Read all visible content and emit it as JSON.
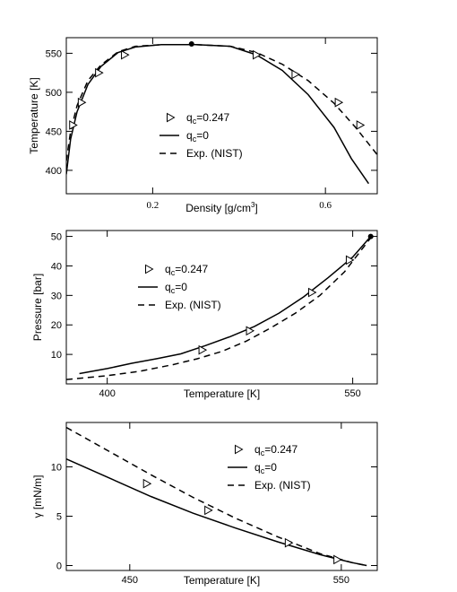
{
  "chart_data": [
    {
      "type": "line",
      "xlabel": "Density [g/cm³]",
      "xlabel_parts": [
        "Density [g/cm",
        "3",
        "]"
      ],
      "ylabel": "Temperature [K]",
      "xlim": [
        0.0,
        0.72
      ],
      "ylim": [
        370,
        570
      ],
      "xticks": [
        0.2,
        0.6
      ],
      "xtick_labels": [
        "0.2",
        "0.6"
      ],
      "yticks": [
        400,
        450,
        500,
        550
      ],
      "ytick_labels": [
        "400",
        "450",
        "500",
        "550"
      ],
      "legend": {
        "placement": "center",
        "items": [
          {
            "label": "q",
            "sub": "c",
            "rest": "=0.247",
            "marker": "triangle-right"
          },
          {
            "label": "q",
            "sub": "c",
            "rest": "=0",
            "line": "solid"
          },
          {
            "label": "Exp. (NIST)",
            "line": "dashed"
          }
        ]
      },
      "series": [
        {
          "style": "triangle-right",
          "x": [
            0.015,
            0.035,
            0.075,
            0.135,
            0.44,
            0.53,
            0.63,
            0.68
          ],
          "y": [
            458,
            487,
            525,
            548,
            548,
            523,
            487,
            458
          ]
        },
        {
          "style": "solid",
          "x": [
            0.0,
            0.01,
            0.025,
            0.05,
            0.08,
            0.12,
            0.16,
            0.22,
            0.3,
            0.38,
            0.44,
            0.5,
            0.56,
            0.62,
            0.66,
            0.7
          ],
          "y": [
            395,
            440,
            475,
            510,
            533,
            551,
            558,
            561,
            561,
            559,
            548,
            528,
            497,
            455,
            415,
            383
          ]
        },
        {
          "style": "dashed",
          "x": [
            0.0,
            0.01,
            0.025,
            0.05,
            0.08,
            0.12,
            0.16,
            0.22,
            0.3,
            0.38,
            0.44,
            0.5,
            0.56,
            0.62,
            0.67,
            0.72
          ],
          "y": [
            412,
            450,
            483,
            515,
            535,
            552,
            559,
            561,
            561,
            559,
            551,
            536,
            515,
            486,
            455,
            420
          ]
        },
        {
          "style": "critical-point",
          "x": [
            0.29
          ],
          "y": [
            562
          ]
        }
      ]
    },
    {
      "type": "line",
      "xlabel": "Temperature [K]",
      "ylabel": "Pressure [bar]",
      "xlim": [
        375,
        565
      ],
      "ylim": [
        0,
        52
      ],
      "xticks": [
        400,
        550
      ],
      "xtick_labels": [
        "400",
        "550"
      ],
      "yticks": [
        10,
        20,
        30,
        40,
        50
      ],
      "ytick_labels": [
        "10",
        "20",
        "30",
        "40",
        "50"
      ],
      "legend": {
        "placement": "upper-left",
        "items": [
          {
            "label": "q",
            "sub": "c",
            "rest": "=0.247",
            "marker": "triangle-right"
          },
          {
            "label": "q",
            "sub": "c",
            "rest": "=0",
            "line": "solid"
          },
          {
            "label": "Exp. (NIST)",
            "line": "dashed"
          }
        ]
      },
      "series": [
        {
          "style": "triangle-right",
          "x": [
            458,
            487,
            525,
            548
          ],
          "y": [
            11.5,
            18,
            31,
            42
          ]
        },
        {
          "style": "solid",
          "x": [
            383,
            400,
            415,
            430,
            445,
            460,
            475,
            490,
            505,
            520,
            535,
            550,
            561
          ],
          "y": [
            3.5,
            5.2,
            7,
            8.5,
            10.2,
            13,
            16,
            19.5,
            24,
            29.5,
            36,
            43,
            50
          ]
        },
        {
          "style": "dashed",
          "x": [
            375,
            400,
            420,
            440,
            455,
            470,
            485,
            500,
            515,
            530,
            545,
            561
          ],
          "y": [
            1.5,
            2.8,
            4.3,
            6.5,
            8.5,
            11,
            14.5,
            19,
            24,
            30,
            38,
            49.5
          ]
        },
        {
          "style": "critical-point",
          "x": [
            561
          ],
          "y": [
            50
          ]
        }
      ]
    },
    {
      "type": "line",
      "xlabel": "Temperature [K]",
      "ylabel": "γ [mN/m]",
      "xlim": [
        420,
        567
      ],
      "ylim": [
        -0.5,
        14.5
      ],
      "xticks": [
        450,
        550
      ],
      "xtick_labels": [
        "450",
        "550"
      ],
      "yticks": [
        0,
        5,
        10
      ],
      "ytick_labels": [
        "0",
        "5",
        "10"
      ],
      "legend": {
        "placement": "top-right",
        "items": [
          {
            "label": "q",
            "sub": "c",
            "rest": "=0.247",
            "marker": "triangle-right"
          },
          {
            "label": "q",
            "sub": "c",
            "rest": "=0",
            "line": "solid"
          },
          {
            "label": "Exp. (NIST)",
            "line": "dashed"
          }
        ]
      },
      "series": [
        {
          "style": "triangle-right",
          "x": [
            458,
            487,
            525,
            548
          ],
          "y": [
            8.3,
            5.6,
            2.3,
            0.6
          ]
        },
        {
          "style": "solid",
          "x": [
            420,
            440,
            460,
            480,
            500,
            520,
            540,
            555,
            562
          ],
          "y": [
            10.8,
            8.9,
            7.0,
            5.3,
            3.8,
            2.4,
            1.1,
            0.3,
            0.0
          ]
        },
        {
          "style": "dashed",
          "x": [
            420,
            440,
            460,
            480,
            500,
            520,
            540,
            555,
            562
          ],
          "y": [
            14.0,
            11.6,
            9.2,
            6.9,
            4.8,
            2.9,
            1.2,
            0.3,
            0.0
          ]
        }
      ]
    }
  ]
}
